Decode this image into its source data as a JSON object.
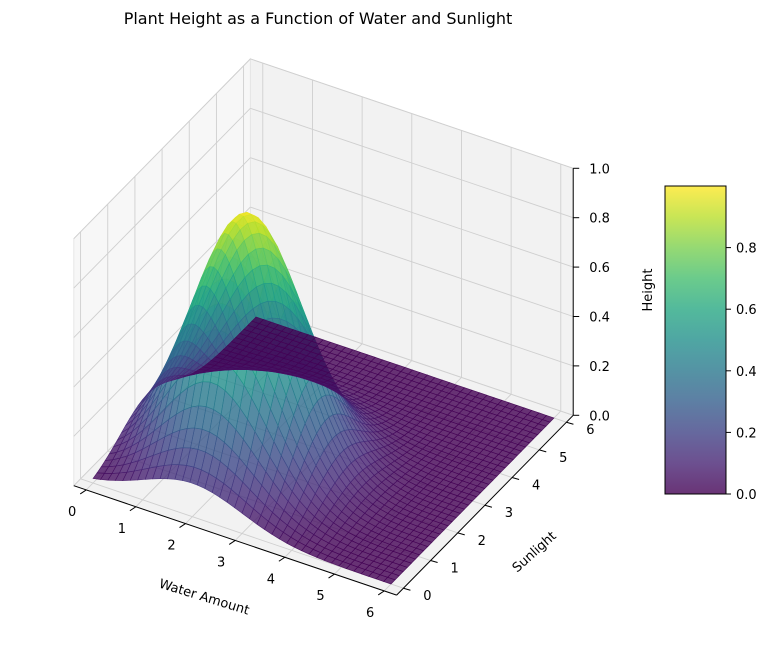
{
  "chart_data": {
    "type": "surface3d",
    "title": "Plant Height as a Function of Water and Sunlight",
    "xlabel": "Water Amount",
    "ylabel": "Sunlight",
    "zlabel": "Height",
    "xlim": [
      0,
      6
    ],
    "ylim": [
      0,
      6
    ],
    "zlim": [
      0,
      1
    ],
    "x_ticks": [
      "0",
      "1",
      "2",
      "3",
      "4",
      "5",
      "6"
    ],
    "y_ticks": [
      "0",
      "1",
      "2",
      "3",
      "4",
      "5",
      "6"
    ],
    "z_ticks": [
      "0.0",
      "0.2",
      "0.4",
      "0.6",
      "0.8",
      "1.0"
    ],
    "surface": {
      "function": "gaussian",
      "peak_height": 1.0,
      "peak_x": 2,
      "peak_y": 2,
      "spread": 1,
      "alpha": 0.8,
      "colormap": "viridis"
    },
    "colorbar": {
      "ticks": [
        "0.0",
        "0.2",
        "0.4",
        "0.6",
        "0.8"
      ],
      "range": [
        0,
        1
      ]
    },
    "grid": true
  }
}
